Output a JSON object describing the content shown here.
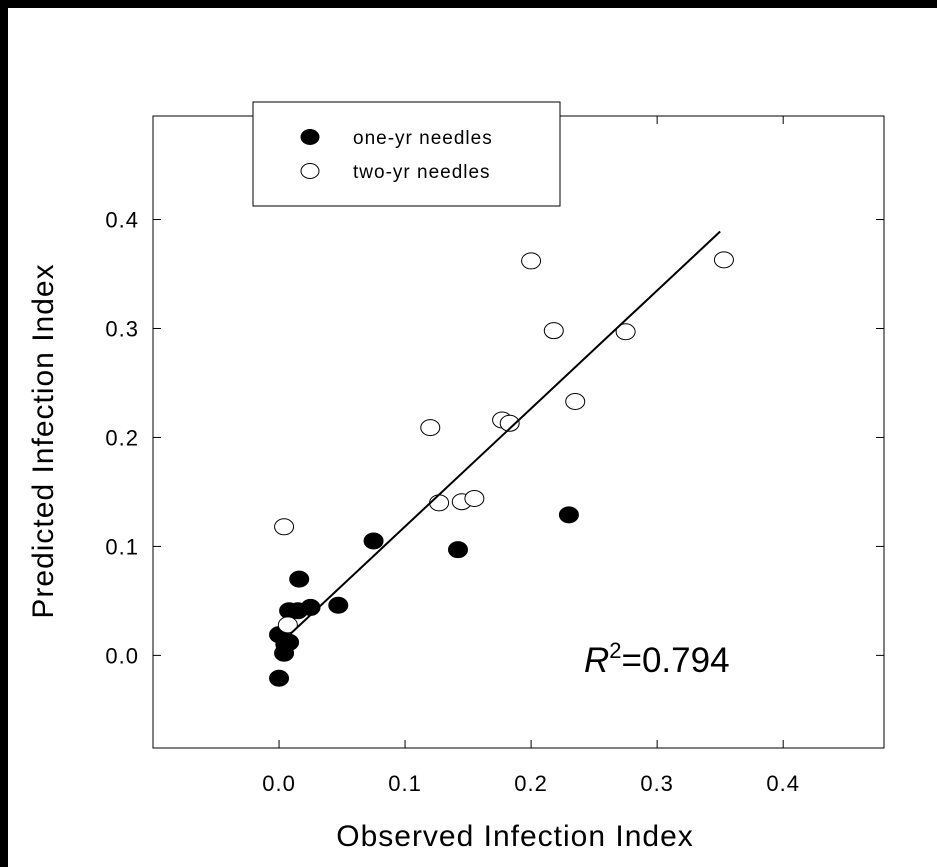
{
  "chart_data": {
    "type": "scatter",
    "xlabel": "Observed Infection Index",
    "ylabel": "Predicted Infection Index",
    "xlim": [
      -0.1,
      0.48
    ],
    "ylim": [
      -0.085,
      0.495
    ],
    "x_ticks": [
      "0.0",
      "0.1",
      "0.2",
      "0.3",
      "0.4"
    ],
    "y_ticks": [
      "0.0",
      "0.1",
      "0.2",
      "0.3",
      "0.4"
    ],
    "grid": false,
    "legend_position": "top-left",
    "series": [
      {
        "name": "one-yr needles",
        "marker": "filled-circle",
        "color": "#000000",
        "points": [
          {
            "x": 0.0,
            "y": -0.021
          },
          {
            "x": 0.0,
            "y": 0.019
          },
          {
            "x": 0.004,
            "y": 0.002
          },
          {
            "x": 0.005,
            "y": 0.01
          },
          {
            "x": 0.008,
            "y": 0.012
          },
          {
            "x": 0.008,
            "y": 0.041
          },
          {
            "x": 0.015,
            "y": 0.041
          },
          {
            "x": 0.016,
            "y": 0.07
          },
          {
            "x": 0.025,
            "y": 0.044
          },
          {
            "x": 0.047,
            "y": 0.046
          },
          {
            "x": 0.075,
            "y": 0.105
          },
          {
            "x": 0.142,
            "y": 0.097
          },
          {
            "x": 0.23,
            "y": 0.129
          }
        ]
      },
      {
        "name": "two-yr needles",
        "marker": "open-circle",
        "color": "#000000",
        "points": [
          {
            "x": 0.004,
            "y": 0.118
          },
          {
            "x": 0.007,
            "y": 0.028
          },
          {
            "x": 0.12,
            "y": 0.209
          },
          {
            "x": 0.127,
            "y": 0.14
          },
          {
            "x": 0.145,
            "y": 0.141
          },
          {
            "x": 0.155,
            "y": 0.144
          },
          {
            "x": 0.177,
            "y": 0.216
          },
          {
            "x": 0.183,
            "y": 0.213
          },
          {
            "x": 0.2,
            "y": 0.362
          },
          {
            "x": 0.218,
            "y": 0.298
          },
          {
            "x": 0.235,
            "y": 0.233
          },
          {
            "x": 0.275,
            "y": 0.297
          },
          {
            "x": 0.353,
            "y": 0.363
          }
        ]
      }
    ],
    "regression_line": {
      "x": [
        0.0,
        0.35
      ],
      "y": [
        0.01,
        0.389
      ]
    },
    "annotation": {
      "r_symbol": "R",
      "superscript": "2",
      "value_text": "=0.794"
    }
  }
}
